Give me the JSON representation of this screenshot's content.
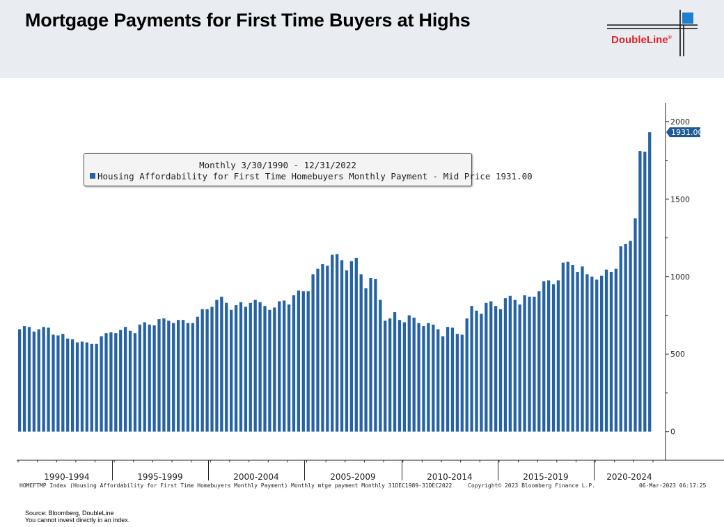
{
  "slide": {
    "title": "Mortgage Payments for First Time Buyers at Highs",
    "logo_text": "DoubleLine",
    "logo_mark": "®",
    "source_line1": "Source: Bloomberg, DoubleLine",
    "source_line2": "You cannot invest directly in an index."
  },
  "colors": {
    "bar": "#2563a4",
    "header_bg": "#e9ecf0",
    "logo_red": "#e0262a",
    "logo_blue": "#1e7fd0"
  },
  "chart_data": {
    "type": "bar",
    "legend": {
      "period": "Monthly 3/30/1990 - 12/31/2022",
      "series_label": "Housing Affordability for First Time Homebuyers Monthly Payment - Mid Price 1931.00",
      "placement": "top-left"
    },
    "series": [
      {
        "name": "Housing Affordability for First Time Homebuyers Monthly Payment - Mid Price",
        "last_value_label": "1931.00",
        "values": [
          660,
          680,
          675,
          645,
          660,
          675,
          670,
          625,
          620,
          630,
          600,
          595,
          575,
          580,
          575,
          565,
          565,
          615,
          635,
          640,
          635,
          655,
          675,
          650,
          635,
          690,
          705,
          690,
          685,
          725,
          730,
          715,
          700,
          720,
          720,
          700,
          700,
          740,
          790,
          790,
          805,
          850,
          870,
          830,
          785,
          815,
          835,
          805,
          830,
          850,
          835,
          810,
          785,
          800,
          840,
          845,
          820,
          880,
          910,
          905,
          905,
          1015,
          1050,
          1080,
          1070,
          1140,
          1145,
          1105,
          1040,
          1100,
          1120,
          1015,
          925,
          990,
          985,
          850,
          715,
          730,
          770,
          720,
          705,
          750,
          735,
          700,
          680,
          700,
          690,
          660,
          615,
          675,
          670,
          630,
          625,
          730,
          810,
          780,
          760,
          830,
          840,
          810,
          790,
          860,
          875,
          850,
          820,
          880,
          870,
          870,
          905,
          970,
          975,
          950,
          975,
          1090,
          1095,
          1075,
          1030,
          1065,
          1015,
          1000,
          980,
          1005,
          1045,
          1030,
          1050,
          1195,
          1210,
          1230,
          1375,
          1810,
          1805,
          1931
        ]
      }
    ],
    "x_tick_labels": [
      "1990-1994",
      "1995-1999",
      "2000-2004",
      "2005-2009",
      "2010-2014",
      "2015-2019",
      "2020-2024"
    ],
    "y_ticks": [
      0,
      500,
      1000,
      1500,
      2000
    ],
    "ylim": [
      -185,
      2120
    ],
    "grid": false,
    "y_axis_side": "right"
  },
  "footer": {
    "index_note": "HOMEFTMP Index (Housing Affordability for First Time Homebuyers Monthly Payment) Monthly mtge payment  Monthly 31DEC1989-31DEC2022",
    "copyright": "Copyright© 2023 Bloomberg Finance L.P.",
    "timestamp": "06-Mar-2023 06:17:25"
  }
}
